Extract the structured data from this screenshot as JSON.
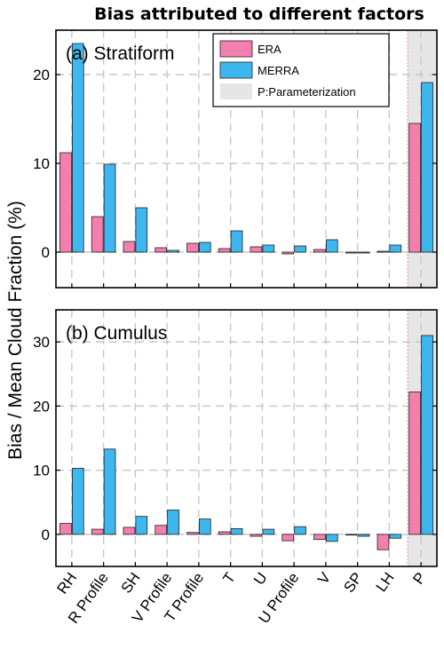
{
  "figure": {
    "title": "Bias attributed to different factors",
    "ylabel": "Bias / Mean Cloud Fraction (%)"
  },
  "legend": {
    "placement": "top-right of panel (a)",
    "entries": [
      {
        "label": "ERA",
        "color": "#F47FAE"
      },
      {
        "label": "MERRA",
        "color": "#3DB7EE"
      },
      {
        "label": "P:Parameterization",
        "color": "#E6E6E6"
      }
    ]
  },
  "colors": {
    "era": "#F47FAE",
    "merra": "#3DB7EE",
    "parameterization_shade": "#E6E6E6",
    "grid": "#C8C8C8"
  },
  "chart_data": [
    {
      "type": "bar",
      "panel": "(a) Stratiform",
      "title": "",
      "xlabel": "",
      "ylabel": "Bias / Mean Cloud Fraction (%)",
      "categories": [
        "RH",
        "R Profile",
        "SH",
        "V Profile",
        "T Profile",
        "T",
        "U",
        "U Profile",
        "V",
        "SP",
        "LH",
        "P"
      ],
      "series": [
        {
          "name": "ERA",
          "values": [
            11.2,
            4.0,
            1.2,
            0.5,
            1.0,
            0.4,
            0.6,
            -0.2,
            0.3,
            -0.1,
            0.1,
            14.5
          ]
        },
        {
          "name": "MERRA",
          "values": [
            23.5,
            9.9,
            5.0,
            0.2,
            1.1,
            2.4,
            0.8,
            0.7,
            1.4,
            -0.1,
            0.8,
            19.1
          ]
        }
      ],
      "yticks": [
        0,
        10,
        20
      ],
      "ylim": [
        -4,
        25
      ],
      "grid": true,
      "shaded_category": "P"
    },
    {
      "type": "bar",
      "panel": "(b) Cumulus",
      "title": "",
      "xlabel": "",
      "ylabel": "Bias / Mean Cloud Fraction (%)",
      "categories": [
        "RH",
        "R Profile",
        "SH",
        "V Profile",
        "T Profile",
        "T",
        "U",
        "U Profile",
        "V",
        "SP",
        "LH",
        "P"
      ],
      "series": [
        {
          "name": "ERA",
          "values": [
            1.7,
            0.8,
            1.1,
            1.4,
            0.3,
            0.4,
            -0.3,
            -1.0,
            -0.8,
            -0.1,
            -2.4,
            22.2
          ]
        },
        {
          "name": "MERRA",
          "values": [
            10.3,
            13.3,
            2.8,
            3.8,
            2.4,
            0.9,
            0.8,
            1.2,
            -1.1,
            -0.3,
            -0.6,
            31.0
          ]
        }
      ],
      "yticks": [
        0,
        10,
        20,
        30
      ],
      "ylim": [
        -5,
        35
      ],
      "grid": true,
      "shaded_category": "P"
    }
  ]
}
